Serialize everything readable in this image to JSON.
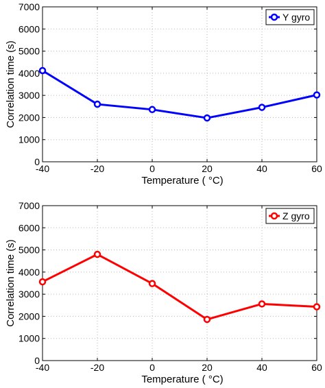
{
  "chart_data": [
    {
      "type": "line",
      "x": [
        -40,
        -20,
        0,
        20,
        40,
        60
      ],
      "series": [
        {
          "name": "Y gyro",
          "values": [
            4120,
            2600,
            2360,
            1980,
            2460,
            3020
          ],
          "color": "#0000ff"
        }
      ],
      "xlabel": "Temperature ( °C)",
      "ylabel": "Correlation time (s)",
      "xlim": [
        -40,
        60
      ],
      "ylim": [
        0,
        7000
      ],
      "xticks": [
        "-40",
        "-20",
        "0",
        "20",
        "40",
        "60"
      ],
      "yticks": [
        "0",
        "1000",
        "2000",
        "3000",
        "4000",
        "5000",
        "6000",
        "7000"
      ],
      "grid": true,
      "legend_position": "top-right",
      "marker": "circle"
    },
    {
      "type": "line",
      "x": [
        -40,
        -20,
        0,
        20,
        40,
        60
      ],
      "series": [
        {
          "name": "Z gyro",
          "values": [
            3560,
            4800,
            3480,
            1860,
            2560,
            2430
          ],
          "color": "#ff0000"
        }
      ],
      "xlabel": "Temperature ( °C)",
      "ylabel": "Correlation time (s)",
      "xlim": [
        -40,
        60
      ],
      "ylim": [
        0,
        7000
      ],
      "xticks": [
        "-40",
        "-20",
        "0",
        "20",
        "40",
        "60"
      ],
      "yticks": [
        "0",
        "1000",
        "2000",
        "3000",
        "4000",
        "5000",
        "6000",
        "7000"
      ],
      "grid": true,
      "legend_position": "top-right",
      "marker": "circle"
    }
  ]
}
